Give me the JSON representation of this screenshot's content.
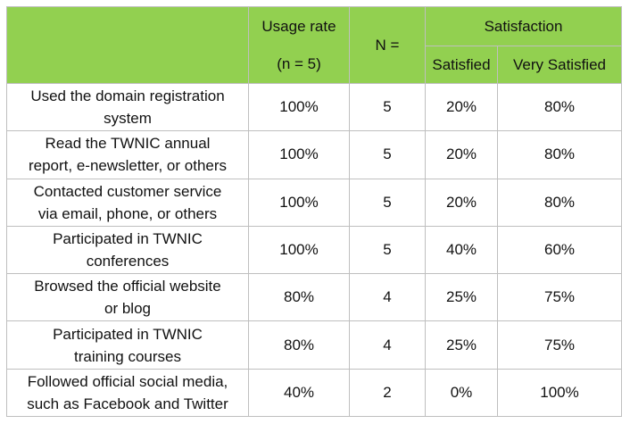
{
  "header": {
    "usage_rate_label": "Usage rate",
    "usage_rate_n": "(n = 5)",
    "n_label": "N =",
    "satisfaction_label": "Satisfaction",
    "satisfied_label": "Satisfied",
    "very_satisfied_label": "Very Satisfied"
  },
  "rows": [
    {
      "activity_line1": "Used the domain registration",
      "activity_line2": "system",
      "usage_rate": "100%",
      "n": "5",
      "satisfied": "20%",
      "very_satisfied": "80%"
    },
    {
      "activity_line1": "Read the TWNIC annual",
      "activity_line2": "report, e-newsletter, or others",
      "usage_rate": "100%",
      "n": "5",
      "satisfied": "20%",
      "very_satisfied": "80%"
    },
    {
      "activity_line1": "Contacted customer service",
      "activity_line2": "via email, phone, or others",
      "usage_rate": "100%",
      "n": "5",
      "satisfied": "20%",
      "very_satisfied": "80%"
    },
    {
      "activity_line1": "Participated in TWNIC",
      "activity_line2": "conferences",
      "usage_rate": "100%",
      "n": "5",
      "satisfied": "40%",
      "very_satisfied": "60%"
    },
    {
      "activity_line1": "Browsed the official website",
      "activity_line2": "or blog",
      "usage_rate": "80%",
      "n": "4",
      "satisfied": "25%",
      "very_satisfied": "75%"
    },
    {
      "activity_line1": "Participated in TWNIC",
      "activity_line2": "training courses",
      "usage_rate": "80%",
      "n": "4",
      "satisfied": "25%",
      "very_satisfied": "75%"
    },
    {
      "activity_line1": "Followed official social media,",
      "activity_line2": "such as Facebook and Twitter",
      "usage_rate": "40%",
      "n": "2",
      "satisfied": "0%",
      "very_satisfied": "100%"
    }
  ],
  "colors": {
    "header_background": "#92d050",
    "border": "#bfbfbf"
  }
}
